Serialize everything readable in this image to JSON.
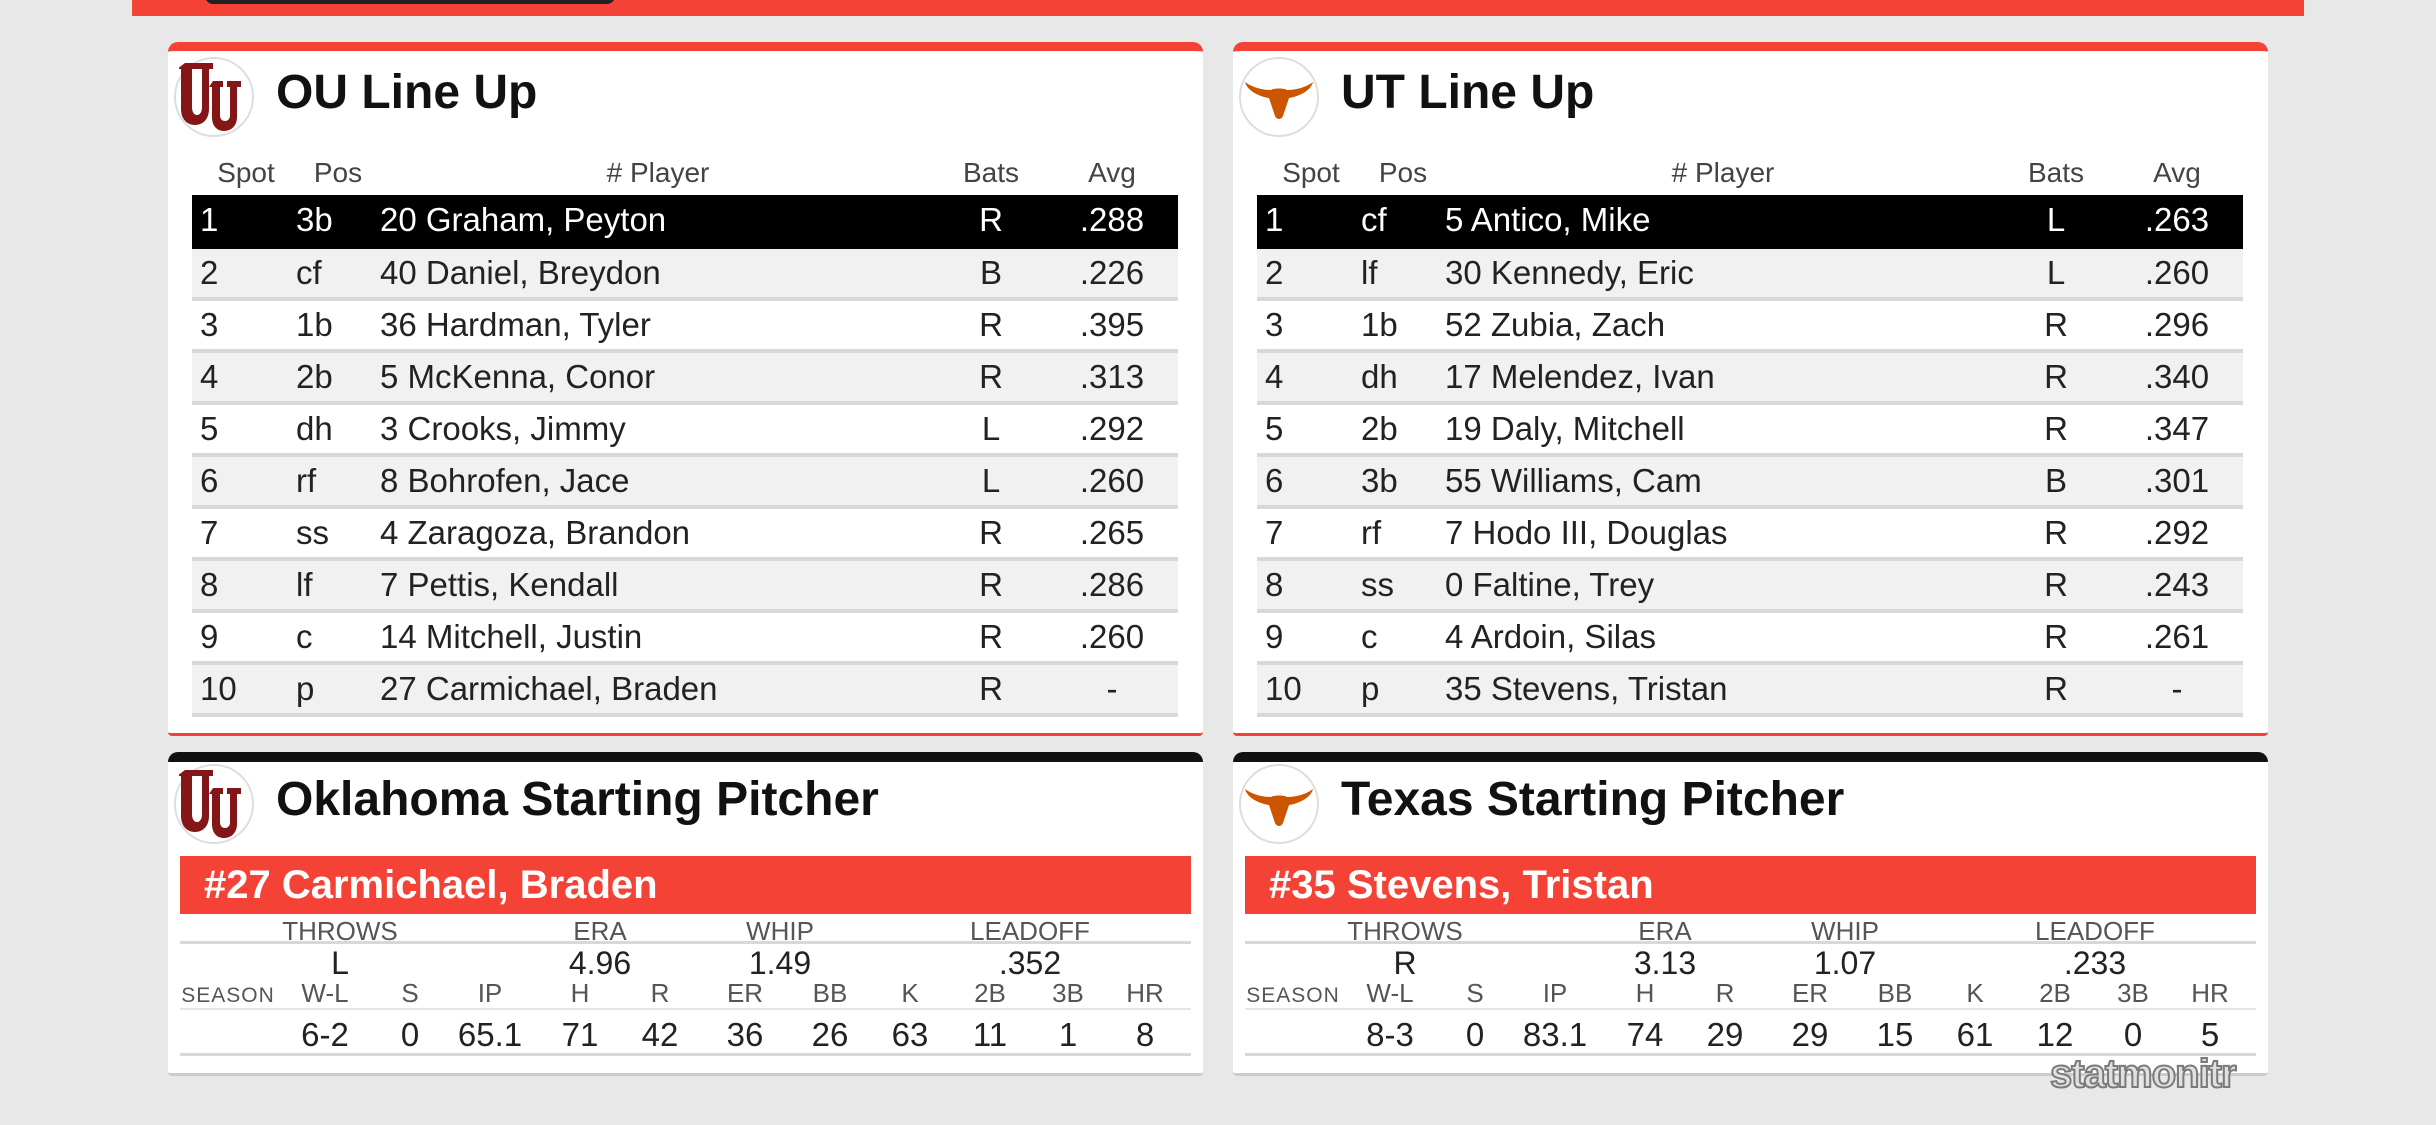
{
  "colors": {
    "accent": "#f44336",
    "ou_crimson": "#841617",
    "ut_orange": "#cc5500"
  },
  "ou_lineup": {
    "title": "OU Line Up",
    "logo_icon": "ou-logo-icon",
    "headers": {
      "spot": "Spot",
      "pos": "Pos",
      "player": "# Player",
      "bats": "Bats",
      "avg": "Avg"
    },
    "rows": [
      {
        "spot": "1",
        "pos": "3b",
        "player": "20 Graham, Peyton",
        "bats": "R",
        "avg": ".288"
      },
      {
        "spot": "2",
        "pos": "cf",
        "player": "40 Daniel, Breydon",
        "bats": "B",
        "avg": ".226"
      },
      {
        "spot": "3",
        "pos": "1b",
        "player": "36 Hardman, Tyler",
        "bats": "R",
        "avg": ".395"
      },
      {
        "spot": "4",
        "pos": "2b",
        "player": "5 McKenna, Conor",
        "bats": "R",
        "avg": ".313"
      },
      {
        "spot": "5",
        "pos": "dh",
        "player": "3 Crooks, Jimmy",
        "bats": "L",
        "avg": ".292"
      },
      {
        "spot": "6",
        "pos": "rf",
        "player": "8 Bohrofen, Jace",
        "bats": "L",
        "avg": ".260"
      },
      {
        "spot": "7",
        "pos": "ss",
        "player": "4 Zaragoza, Brandon",
        "bats": "R",
        "avg": ".265"
      },
      {
        "spot": "8",
        "pos": "lf",
        "player": "7 Pettis, Kendall",
        "bats": "R",
        "avg": ".286"
      },
      {
        "spot": "9",
        "pos": "c",
        "player": "14 Mitchell, Justin",
        "bats": "R",
        "avg": ".260"
      },
      {
        "spot": "10",
        "pos": "p",
        "player": "27 Carmichael, Braden",
        "bats": "R",
        "avg": "-"
      }
    ]
  },
  "ut_lineup": {
    "title": "UT Line Up",
    "logo_icon": "longhorn-logo-icon",
    "headers": {
      "spot": "Spot",
      "pos": "Pos",
      "player": "# Player",
      "bats": "Bats",
      "avg": "Avg"
    },
    "rows": [
      {
        "spot": "1",
        "pos": "cf",
        "player": "5 Antico, Mike",
        "bats": "L",
        "avg": ".263"
      },
      {
        "spot": "2",
        "pos": "lf",
        "player": "30 Kennedy, Eric",
        "bats": "L",
        "avg": ".260"
      },
      {
        "spot": "3",
        "pos": "1b",
        "player": "52 Zubia, Zach",
        "bats": "R",
        "avg": ".296"
      },
      {
        "spot": "4",
        "pos": "dh",
        "player": "17 Melendez, Ivan",
        "bats": "R",
        "avg": ".340"
      },
      {
        "spot": "5",
        "pos": "2b",
        "player": "19 Daly, Mitchell",
        "bats": "R",
        "avg": ".347"
      },
      {
        "spot": "6",
        "pos": "3b",
        "player": "55 Williams, Cam",
        "bats": "B",
        "avg": ".301"
      },
      {
        "spot": "7",
        "pos": "rf",
        "player": "7 Hodo III, Douglas",
        "bats": "R",
        "avg": ".292"
      },
      {
        "spot": "8",
        "pos": "ss",
        "player": "0 Faltine, Trey",
        "bats": "R",
        "avg": ".243"
      },
      {
        "spot": "9",
        "pos": "c",
        "player": "4 Ardoin, Silas",
        "bats": "R",
        "avg": ".261"
      },
      {
        "spot": "10",
        "pos": "p",
        "player": "35 Stevens, Tristan",
        "bats": "R",
        "avg": "-"
      }
    ]
  },
  "ou_pitcher": {
    "title": "Oklahoma Starting Pitcher",
    "name": "#27 Carmichael, Braden",
    "labels": {
      "throws": "THROWS",
      "era": "ERA",
      "whip": "WHIP",
      "leadoff": "LEADOFF"
    },
    "values": {
      "throws": "L",
      "era": "4.96",
      "whip": "1.49",
      "leadoff": ".352"
    },
    "season_label": "SEASON",
    "season_headers": {
      "wl": "W-L",
      "s": "S",
      "ip": "IP",
      "h": "H",
      "r": "R",
      "er": "ER",
      "bb": "BB",
      "k": "K",
      "b2": "2B",
      "b3": "3B",
      "hr": "HR"
    },
    "season_values": {
      "wl": "6-2",
      "s": "0",
      "ip": "65.1",
      "h": "71",
      "r": "42",
      "er": "36",
      "bb": "26",
      "k": "63",
      "b2": "11",
      "b3": "1",
      "hr": "8"
    }
  },
  "ut_pitcher": {
    "title": "Texas Starting Pitcher",
    "name": "#35 Stevens, Tristan",
    "labels": {
      "throws": "THROWS",
      "era": "ERA",
      "whip": "WHIP",
      "leadoff": "LEADOFF"
    },
    "values": {
      "throws": "R",
      "era": "3.13",
      "whip": "1.07",
      "leadoff": ".233"
    },
    "season_label": "SEASON",
    "season_headers": {
      "wl": "W-L",
      "s": "S",
      "ip": "IP",
      "h": "H",
      "r": "R",
      "er": "ER",
      "bb": "BB",
      "k": "K",
      "b2": "2B",
      "b3": "3B",
      "hr": "HR"
    },
    "season_values": {
      "wl": "8-3",
      "s": "0",
      "ip": "83.1",
      "h": "74",
      "r": "29",
      "er": "29",
      "bb": "15",
      "k": "61",
      "b2": "12",
      "b3": "0",
      "hr": "5"
    }
  },
  "watermark": "statmonitr"
}
